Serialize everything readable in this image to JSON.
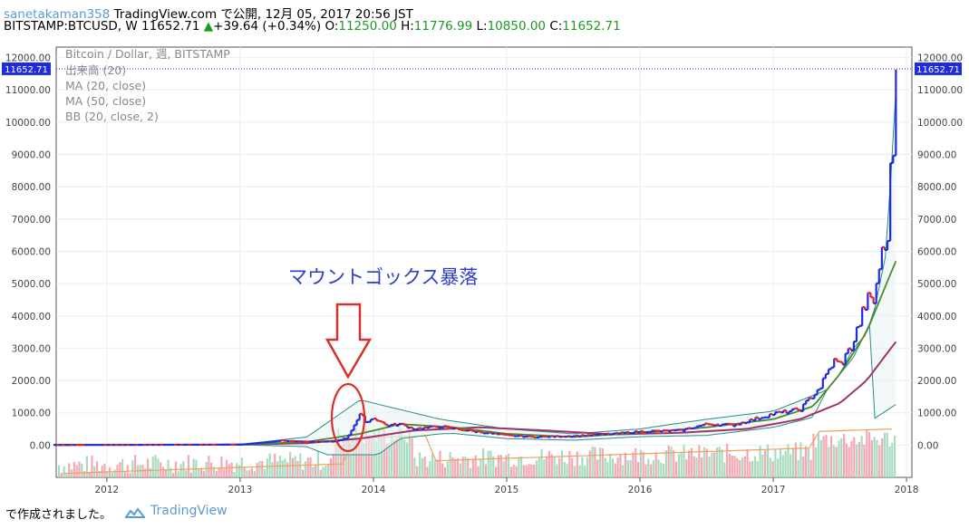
{
  "header": {
    "author": "sanetakaman358",
    "published": "TradingView.com で公開, 12月 05, 2017 20:56 JST",
    "symbol": "BITSTAMP:BTCUSD, W",
    "last": "11652.71",
    "change_arrow": "▲",
    "change": "+39.64 (+0.34%)",
    "open_label": "O:",
    "open": "11250.00",
    "high_label": "H:",
    "high": "11776.99",
    "low_label": "L:",
    "low": "10850.00",
    "close_label": "C:",
    "close": "11652.71"
  },
  "legend": {
    "title": "Bitcoin / Dollar, 週, BITSTAMP",
    "items": [
      "出来高 (20)",
      "MA (20, close)",
      "MA (50, close)",
      "BB (20, close, 2)"
    ]
  },
  "annotation": {
    "text": "マウントゴックス暴落",
    "color": "#2f3ec8",
    "arrow_color": "#d9302c"
  },
  "footer": {
    "text": "で作成されました。",
    "brand": "TradingView"
  },
  "colors": {
    "up": "#1f2be0",
    "down": "#e0202a",
    "ma20": "#4b8a2a",
    "ma50": "#a0336b",
    "bb": "#2a8b8b",
    "vol_ma": "#f0a060",
    "vol_up": "#a8dcc0",
    "vol_down": "#f4a8b4",
    "price_tag": "#1f2be0"
  },
  "chart_data": {
    "type": "line",
    "title": "Bitcoin / Dollar, 週, BITSTAMP",
    "xlabel": "",
    "ylabel": "",
    "x_ticks": [
      "2012",
      "2013",
      "2014",
      "2015",
      "2016",
      "2017",
      "2018"
    ],
    "y_ticks": [
      "12000.00",
      "11000.00",
      "10000.00",
      "9000.00",
      "8000.00",
      "7000.00",
      "6000.00",
      "5000.00",
      "4000.00",
      "3000.00",
      "2000.00",
      "1000.00",
      "0.00"
    ],
    "ylim": [
      -1000,
      12100
    ],
    "last_price_label": "11652.71",
    "grid": true,
    "series": [
      {
        "name": "close",
        "x": [
          2011.6,
          2012.0,
          2012.5,
          2013.0,
          2013.2,
          2013.3,
          2013.5,
          2013.7,
          2013.8,
          2013.85,
          2013.9,
          2013.95,
          2014.0,
          2014.1,
          2014.2,
          2014.3,
          2014.5,
          2014.7,
          2014.9,
          2015.0,
          2015.2,
          2015.5,
          2015.8,
          2016.0,
          2016.3,
          2016.5,
          2016.7,
          2017.0,
          2017.2,
          2017.35,
          2017.45,
          2017.5,
          2017.55,
          2017.6,
          2017.7,
          2017.75,
          2017.8,
          2017.83,
          2017.85,
          2017.87,
          2017.9,
          2017.92
        ],
        "values": [
          5,
          6,
          10,
          15,
          90,
          140,
          100,
          110,
          220,
          600,
          950,
          700,
          850,
          600,
          650,
          500,
          580,
          450,
          350,
          300,
          250,
          280,
          350,
          420,
          450,
          650,
          620,
          970,
          1100,
          1800,
          2600,
          2500,
          2800,
          3200,
          4500,
          4400,
          5700,
          6100,
          5900,
          8000,
          9300,
          11652
        ]
      },
      {
        "name": "MA (20, close)",
        "x": [
          2011.6,
          2013.0,
          2013.5,
          2013.9,
          2014.2,
          2014.6,
          2015.0,
          2015.5,
          2016.0,
          2016.5,
          2017.0,
          2017.3,
          2017.5,
          2017.7,
          2017.92
        ],
        "values": [
          5,
          15,
          100,
          350,
          650,
          550,
          350,
          250,
          380,
          550,
          800,
          1200,
          2200,
          3500,
          5700
        ]
      },
      {
        "name": "MA (50, close)",
        "x": [
          2011.6,
          2013.0,
          2013.5,
          2013.9,
          2014.3,
          2014.8,
          2015.3,
          2015.8,
          2016.3,
          2016.8,
          2017.2,
          2017.5,
          2017.7,
          2017.92
        ],
        "values": [
          5,
          12,
          60,
          200,
          450,
          550,
          450,
          330,
          380,
          500,
          800,
          1300,
          2000,
          3200
        ]
      },
      {
        "name": "BB (20, close, 2)",
        "x": [
          2011.6,
          2013.0,
          2013.5,
          2013.9,
          2014.0,
          2014.5,
          2015.0,
          2015.5,
          2016.0,
          2016.5,
          2017.0,
          2017.4,
          2017.6,
          2017.75,
          2017.85,
          2017.92
        ],
        "values": [
          10,
          20,
          250,
          1400,
          1300,
          800,
          500,
          350,
          500,
          800,
          1050,
          1700,
          2700,
          4000,
          6000,
          11000
        ]
      }
    ],
    "annotations": [
      "マウントゴックス暴落"
    ]
  }
}
